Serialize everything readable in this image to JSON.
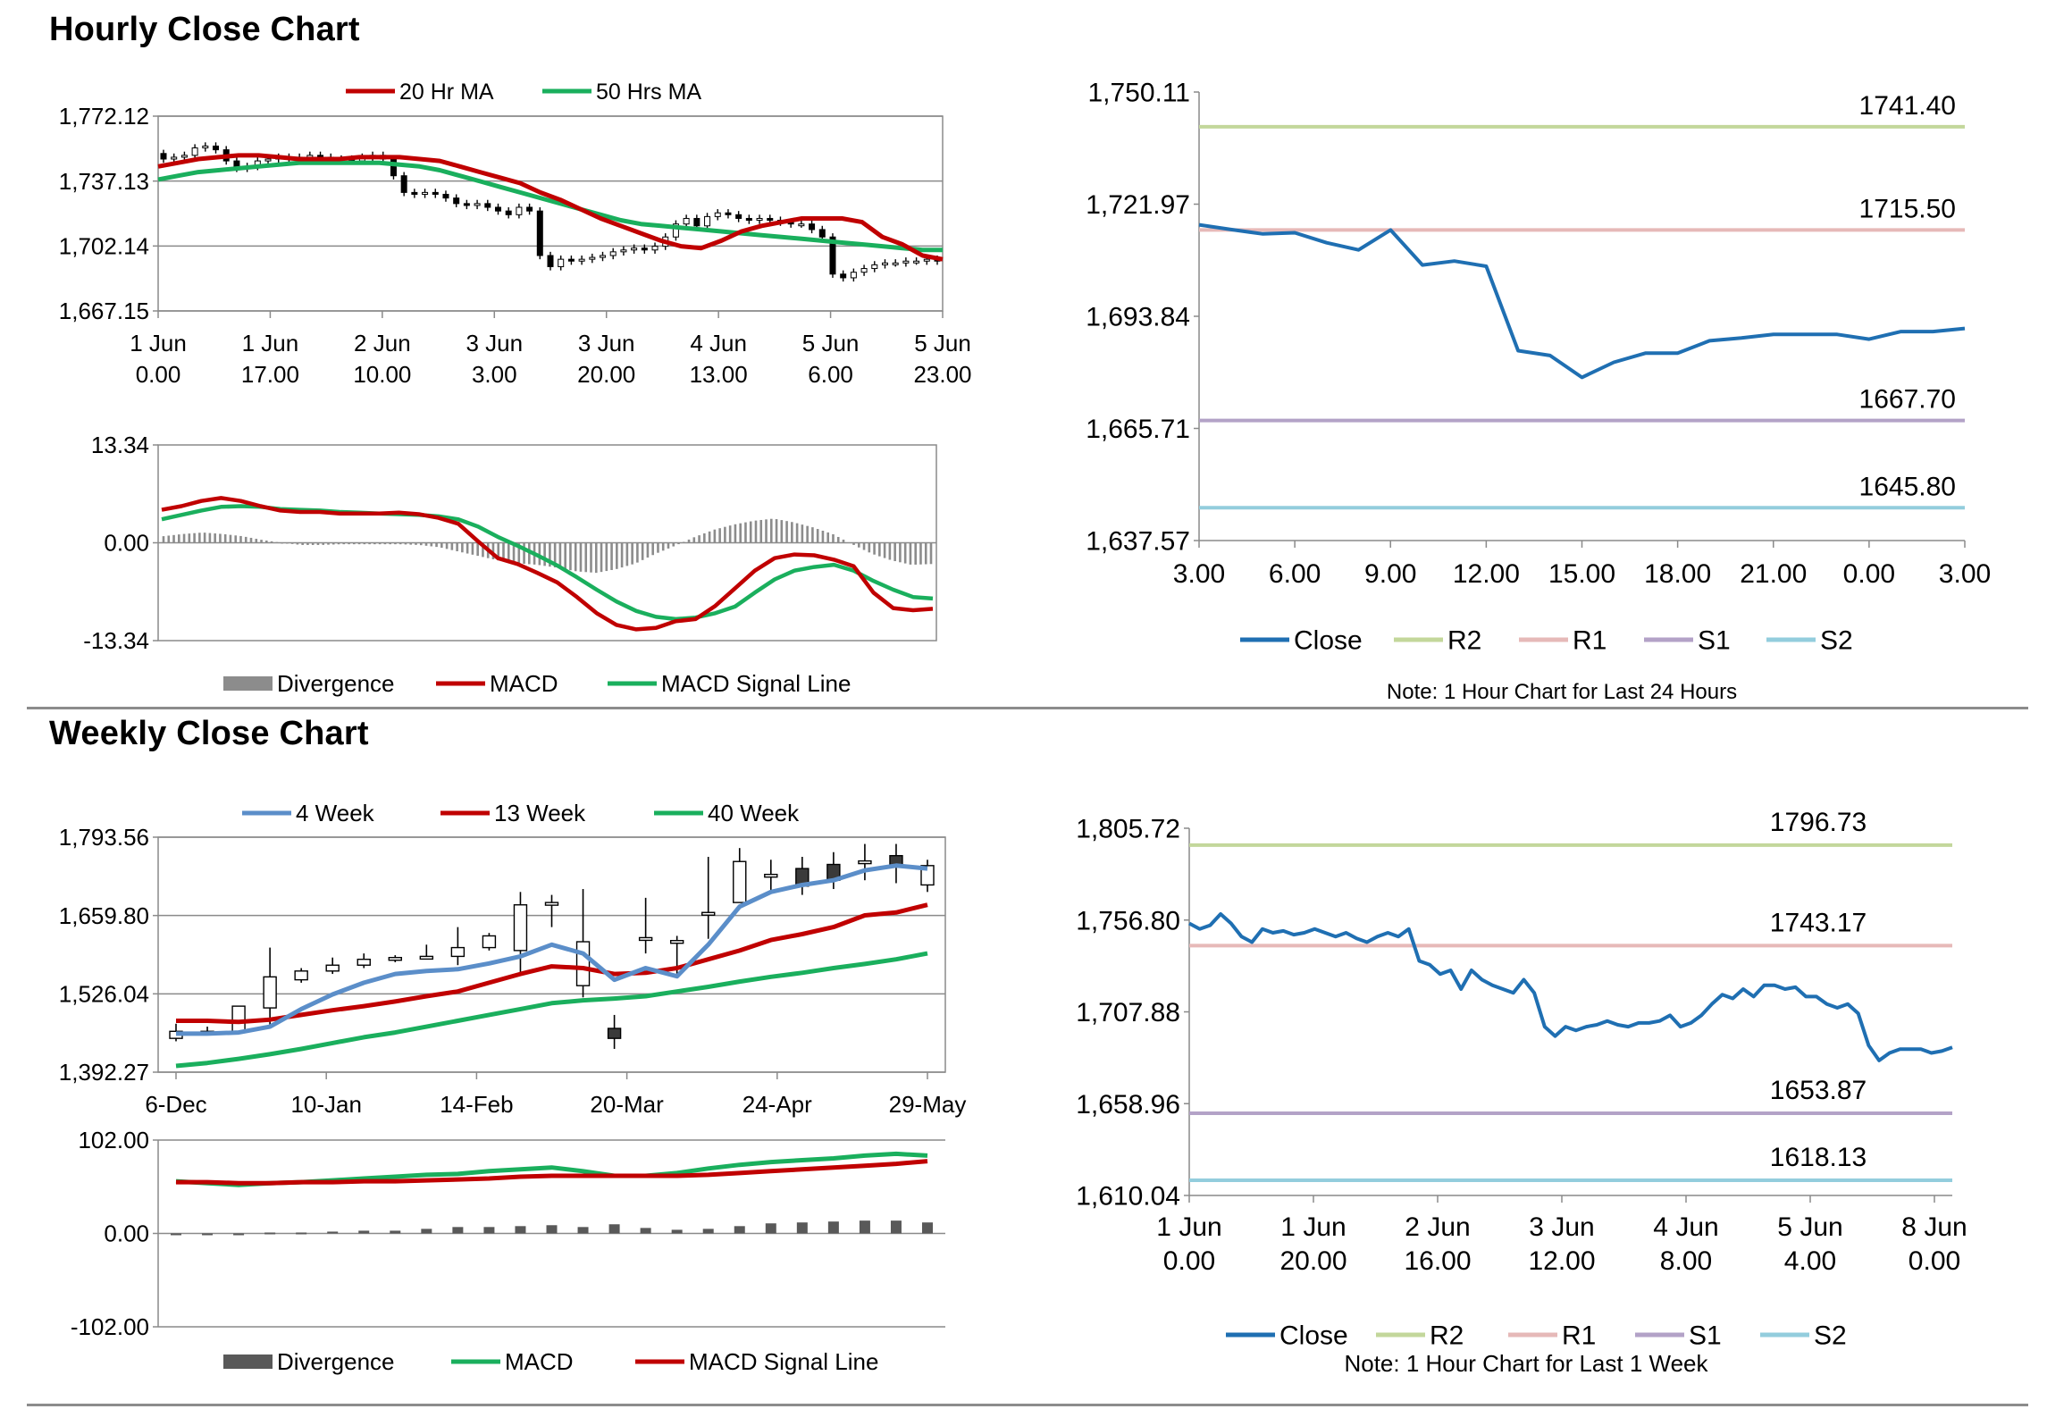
{
  "sections": {
    "hourly_title": "Hourly Close Chart",
    "weekly_title": "Weekly Close Chart"
  },
  "colors": {
    "ma20": "#c00000",
    "ma50": "#1aaf5d",
    "hist": "#8c8c8c",
    "close": "#1f6fb2",
    "r2": "#c3d79b",
    "r1": "#e6b9b8",
    "s1": "#b3a2c7",
    "s2": "#93cddd",
    "w4": "#5b8ec9",
    "w13": "#c00000",
    "w40": "#1aaf5d",
    "whist": "#595959"
  },
  "chart_data": [
    {
      "id": "hourly-price",
      "type": "candlestick",
      "title": "",
      "ylim": [
        1667.15,
        1772.12
      ],
      "yticks": [
        "1,772.12",
        "1,737.13",
        "1,702.14",
        "1,667.15"
      ],
      "xticks": [
        [
          "1 Jun",
          "0.00"
        ],
        [
          "1 Jun",
          "17.00"
        ],
        [
          "2 Jun",
          "10.00"
        ],
        [
          "3 Jun",
          "3.00"
        ],
        [
          "3 Jun",
          "20.00"
        ],
        [
          "4 Jun",
          "13.00"
        ],
        [
          "5 Jun",
          "6.00"
        ],
        [
          "5 Jun",
          "23.00"
        ]
      ],
      "legend": [
        "20 Hr MA",
        "50 Hrs MA"
      ],
      "candles_o": [
        1752,
        1749,
        1750,
        1751,
        1755,
        1756,
        1754,
        1748,
        1744,
        1745,
        1748,
        1749,
        1750,
        1749,
        1750,
        1751,
        1750,
        1749,
        1749,
        1748,
        1750,
        1751,
        1749,
        1740,
        1731,
        1730,
        1731,
        1730,
        1728,
        1725,
        1724,
        1725,
        1723,
        1721,
        1719,
        1723,
        1721,
        1697,
        1691,
        1695,
        1694,
        1695,
        1696,
        1697,
        1699,
        1700,
        1701,
        1700,
        1702,
        1707,
        1714,
        1717,
        1713,
        1718,
        1720,
        1719,
        1717,
        1716,
        1717,
        1716,
        1715,
        1714,
        1714,
        1711,
        1707,
        1687,
        1685,
        1688,
        1690,
        1692,
        1693,
        1693,
        1694,
        1694,
        1695
      ],
      "candles_c": [
        1749,
        1750,
        1751,
        1755,
        1756,
        1754,
        1748,
        1744,
        1745,
        1748,
        1749,
        1750,
        1749,
        1750,
        1751,
        1750,
        1749,
        1749,
        1748,
        1750,
        1751,
        1749,
        1740,
        1731,
        1730,
        1731,
        1730,
        1728,
        1725,
        1724,
        1725,
        1723,
        1721,
        1719,
        1723,
        1721,
        1697,
        1691,
        1695,
        1694,
        1695,
        1696,
        1697,
        1699,
        1700,
        1701,
        1700,
        1702,
        1707,
        1714,
        1717,
        1713,
        1718,
        1720,
        1719,
        1717,
        1716,
        1717,
        1716,
        1715,
        1714,
        1714,
        1711,
        1707,
        1687,
        1685,
        1688,
        1690,
        1692,
        1693,
        1693,
        1694,
        1694,
        1695,
        1694
      ],
      "series": [
        {
          "name": "20 Hr MA",
          "values": [
            1745,
            1747,
            1749,
            1750,
            1751,
            1751,
            1750,
            1749,
            1749,
            1749,
            1750,
            1750,
            1750,
            1749,
            1748,
            1745,
            1742,
            1739,
            1736,
            1731,
            1727,
            1722,
            1717,
            1713,
            1709,
            1705,
            1702,
            1701,
            1705,
            1710,
            1713,
            1715,
            1717,
            1717,
            1717,
            1715,
            1707,
            1703,
            1697,
            1695
          ]
        },
        {
          "name": "50 Hrs MA",
          "values": [
            1738,
            1740,
            1742,
            1743,
            1744,
            1745,
            1746,
            1747,
            1747,
            1747,
            1747,
            1747,
            1746,
            1745,
            1743,
            1740,
            1737,
            1734,
            1731,
            1728,
            1725,
            1722,
            1719,
            1716,
            1714,
            1713,
            1712,
            1711,
            1710,
            1709,
            1708,
            1707,
            1706,
            1705,
            1704,
            1703,
            1702,
            1701,
            1700,
            1700
          ]
        }
      ]
    },
    {
      "id": "hourly-macd",
      "type": "line+bar",
      "ylim": [
        -13.34,
        13.34
      ],
      "yticks": [
        "13.34",
        "0.00",
        "-13.34"
      ],
      "legend": [
        "Divergence",
        "MACD",
        "MACD Signal Line"
      ],
      "histogram": [
        0.9,
        1.2,
        1.4,
        1.2,
        0.9,
        0.4,
        0.0,
        -0.3,
        -0.3,
        -0.2,
        -0.2,
        -0.2,
        -0.2,
        -0.3,
        -0.6,
        -1.2,
        -1.8,
        -2.4,
        -2.8,
        -3.0,
        -3.4,
        -3.9,
        -4.1,
        -3.6,
        -2.8,
        -1.5,
        -0.4,
        0.8,
        1.8,
        2.5,
        3.0,
        3.3,
        2.8,
        2.1,
        1.2,
        -0.2,
        -1.5,
        -2.4,
        -3.0,
        -2.9
      ],
      "series": [
        {
          "name": "MACD",
          "values": [
            4.5,
            5.0,
            5.7,
            6.1,
            5.7,
            5.0,
            4.4,
            4.2,
            4.2,
            4.0,
            4.0,
            4.0,
            4.1,
            3.9,
            3.4,
            2.6,
            0.2,
            -2.1,
            -2.9,
            -4.1,
            -5.4,
            -7.4,
            -9.6,
            -11.2,
            -11.8,
            -11.6,
            -10.7,
            -10.4,
            -8.6,
            -6.2,
            -3.8,
            -2.1,
            -1.6,
            -1.7,
            -2.3,
            -3.2,
            -6.8,
            -8.9,
            -9.2,
            -9.0
          ]
        },
        {
          "name": "MACD Signal Line",
          "values": [
            3.2,
            3.8,
            4.4,
            4.9,
            5.0,
            4.9,
            4.6,
            4.5,
            4.4,
            4.2,
            4.1,
            4.0,
            3.9,
            3.8,
            3.6,
            3.2,
            2.2,
            0.8,
            -0.4,
            -1.7,
            -3.1,
            -4.7,
            -6.4,
            -8.0,
            -9.3,
            -10.1,
            -10.4,
            -10.2,
            -9.6,
            -8.7,
            -6.8,
            -5.0,
            -3.8,
            -3.3,
            -3.0,
            -3.8,
            -5.2,
            -6.4,
            -7.4,
            -7.6
          ]
        }
      ]
    },
    {
      "id": "hourly-close",
      "type": "line",
      "ylim": [
        1637.57,
        1750.11
      ],
      "yticks": [
        "1,750.11",
        "1,721.97",
        "1,693.84",
        "1,665.71",
        "1,637.57"
      ],
      "xticks": [
        "3.00",
        "6.00",
        "9.00",
        "12.00",
        "15.00",
        "18.00",
        "21.00",
        "0.00",
        "3.00"
      ],
      "legend": [
        "Close",
        "R2",
        "R1",
        "S1",
        "S2"
      ],
      "levels": {
        "R2": 1741.4,
        "R1": 1715.5,
        "S1": 1667.7,
        "S2": 1645.8
      },
      "level_labels": {
        "R2": "1741.40",
        "R1": "1715.50",
        "S1": "1667.70",
        "S2": "1645.80"
      },
      "note": "Note: 1 Hour Chart for Last 24 Hours",
      "values": [
        1716.8,
        1715.6,
        1714.5,
        1714.8,
        1712.3,
        1710.5,
        1715.5,
        1706.7,
        1707.7,
        1706.4,
        1685.2,
        1684.0,
        1678.5,
        1682.3,
        1684.6,
        1684.6,
        1687.7,
        1688.4,
        1689.3,
        1689.3,
        1689.3,
        1688.1,
        1690.0,
        1690.0,
        1690.8
      ]
    },
    {
      "id": "weekly-price",
      "type": "candlestick",
      "ylim": [
        1392.27,
        1793.56
      ],
      "yticks": [
        "1,793.56",
        "1,659.80",
        "1,526.04",
        "1,392.27"
      ],
      "xticks": [
        "6-Dec",
        "10-Jan",
        "14-Feb",
        "20-Mar",
        "24-Apr",
        "29-May"
      ],
      "legend": [
        "4 Week",
        "13 Week",
        "40 Week"
      ],
      "candles_o": [
        1450,
        1462,
        1462,
        1502,
        1550,
        1565,
        1575,
        1585,
        1588,
        1590,
        1605,
        1600,
        1682,
        1540,
        1467,
        1622,
        1617,
        1665,
        1682,
        1730,
        1740,
        1747,
        1753,
        1762,
        1712
      ],
      "candles_c": [
        1462,
        1462,
        1505,
        1555,
        1565,
        1575,
        1585,
        1588,
        1590,
        1605,
        1625,
        1678,
        1682,
        1615,
        1450,
        1622,
        1617,
        1665,
        1752,
        1730,
        1710,
        1720,
        1753,
        1745,
        1745
      ],
      "candles_h": [
        1475,
        1470,
        1505,
        1605,
        1570,
        1588,
        1595,
        1592,
        1610,
        1640,
        1630,
        1700,
        1695,
        1705,
        1490,
        1690,
        1625,
        1760,
        1775,
        1755,
        1760,
        1768,
        1782,
        1782,
        1755
      ],
      "candles_l": [
        1445,
        1455,
        1460,
        1470,
        1545,
        1560,
        1570,
        1580,
        1585,
        1575,
        1600,
        1560,
        1640,
        1520,
        1432,
        1595,
        1560,
        1620,
        1700,
        1700,
        1695,
        1705,
        1720,
        1715,
        1700
      ],
      "series": [
        {
          "name": "4 Week",
          "values": [
            1458,
            1458,
            1460,
            1470,
            1500,
            1525,
            1545,
            1560,
            1565,
            1568,
            1578,
            1590,
            1610,
            1595,
            1550,
            1570,
            1556,
            1610,
            1675,
            1700,
            1712,
            1720,
            1737,
            1745,
            1740
          ]
        },
        {
          "name": "13 Week",
          "values": [
            1480,
            1480,
            1478,
            1482,
            1490,
            1498,
            1505,
            1513,
            1522,
            1530,
            1545,
            1560,
            1573,
            1570,
            1560,
            1562,
            1570,
            1585,
            1600,
            1618,
            1628,
            1640,
            1660,
            1665,
            1678
          ]
        },
        {
          "name": "40 Week",
          "values": [
            1403,
            1408,
            1415,
            1423,
            1432,
            1442,
            1452,
            1460,
            1470,
            1480,
            1490,
            1500,
            1510,
            1515,
            1518,
            1522,
            1530,
            1538,
            1547,
            1555,
            1562,
            1570,
            1577,
            1585,
            1595
          ]
        }
      ]
    },
    {
      "id": "weekly-macd",
      "type": "line+bar",
      "ylim": [
        -102.0,
        102.0
      ],
      "yticks": [
        "102.00",
        "0.00",
        "-102.00"
      ],
      "legend": [
        "Divergence",
        "MACD",
        "MACD Signal Line"
      ],
      "histogram": [
        0,
        0,
        0,
        1,
        1,
        2,
        3,
        3,
        5,
        7,
        7,
        8,
        9,
        7,
        10,
        6,
        4,
        5,
        8,
        11,
        12,
        13,
        14,
        14,
        12
      ],
      "series": [
        {
          "name": "MACD",
          "values": [
            57,
            55,
            53,
            55,
            56,
            58,
            60,
            62,
            64,
            65,
            68,
            70,
            72,
            68,
            63,
            63,
            66,
            71,
            75,
            78,
            80,
            82,
            85,
            87,
            85
          ]
        },
        {
          "name": "MACD Signal Line",
          "values": [
            56,
            56,
            55,
            55,
            56,
            56,
            57,
            57,
            58,
            59,
            60,
            62,
            63,
            63,
            63,
            63,
            63,
            64,
            66,
            68,
            70,
            72,
            74,
            76,
            79
          ]
        }
      ]
    },
    {
      "id": "weekly-close",
      "type": "line",
      "ylim": [
        1610.04,
        1805.72
      ],
      "yticks": [
        "1,805.72",
        "1,756.80",
        "1,707.88",
        "1,658.96",
        "1,610.04"
      ],
      "xticks": [
        [
          "1 Jun",
          "0.00"
        ],
        [
          "1 Jun",
          "20.00"
        ],
        [
          "2 Jun",
          "16.00"
        ],
        [
          "3 Jun",
          "12.00"
        ],
        [
          "4 Jun",
          "8.00"
        ],
        [
          "5 Jun",
          "4.00"
        ],
        [
          "8 Jun",
          "0.00"
        ]
      ],
      "legend": [
        "Close",
        "R2",
        "R1",
        "S1",
        "S2"
      ],
      "levels": {
        "R2": 1796.73,
        "R1": 1743.17,
        "S1": 1653.87,
        "S2": 1618.13
      },
      "level_labels": {
        "R2": "1796.73",
        "R1": "1743.17",
        "S1": "1653.87",
        "S2": "1618.13"
      },
      "note": "Note: 1 Hour Chart for Last 1 Week",
      "values": [
        1755,
        1752,
        1754,
        1760,
        1755,
        1748,
        1745,
        1752,
        1750,
        1751,
        1749,
        1750,
        1752,
        1750,
        1748,
        1750,
        1747,
        1745,
        1748,
        1750,
        1748,
        1752,
        1735,
        1733,
        1728,
        1730,
        1720,
        1730,
        1725,
        1722,
        1720,
        1718,
        1725,
        1718,
        1700,
        1695,
        1700,
        1698,
        1700,
        1701,
        1703,
        1701,
        1700,
        1702,
        1702,
        1703,
        1706,
        1700,
        1702,
        1706,
        1712,
        1717,
        1715,
        1720,
        1716,
        1722,
        1722,
        1720,
        1721,
        1716,
        1716,
        1712,
        1710,
        1712,
        1707,
        1690,
        1682,
        1686,
        1688,
        1688,
        1688,
        1686,
        1687,
        1689
      ]
    }
  ]
}
